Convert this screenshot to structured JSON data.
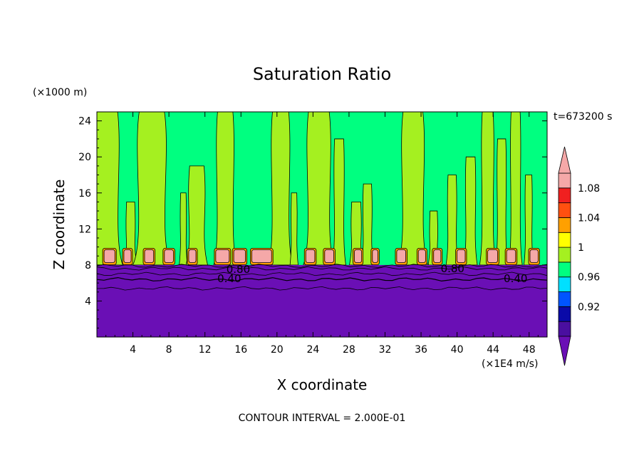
{
  "chart_data": {
    "type": "heatmap",
    "title": "Saturation Ratio",
    "xlabel": "X coordinate",
    "ylabel": "Z coordinate",
    "x_unit": "(×1E4 m/s)",
    "y_unit": "(×1000 m)",
    "time_label": "t=673200 s",
    "footer": "CONTOUR INTERVAL = 2.000E-01",
    "xlim": [
      0,
      50
    ],
    "ylim": [
      0,
      25
    ],
    "x_ticks": [
      4,
      8,
      12,
      16,
      20,
      24,
      28,
      32,
      36,
      40,
      44,
      48
    ],
    "y_ticks": [
      4,
      8,
      12,
      16,
      20,
      24
    ],
    "x_tick_labels": [
      "4",
      "8",
      "12",
      "16",
      "20",
      "24",
      "28",
      "32",
      "36",
      "40",
      "44",
      "48"
    ],
    "y_tick_labels": [
      "4",
      "8",
      "12",
      "16",
      "20",
      "24"
    ],
    "colorbar": {
      "levels": [
        0.92,
        0.96,
        1,
        1.04,
        1.08
      ],
      "labels": [
        "0.92",
        "0.96",
        "1",
        "1.04",
        "1.08"
      ],
      "colors": [
        "#4a0fa0",
        "#0a0aa8",
        "#0055ff",
        "#00e0ff",
        "#00ff80",
        "#a5f020",
        "#ffff00",
        "#ffa000",
        "#ff5010",
        "#f02020",
        "#f5a8a8"
      ],
      "under_color": "#6a0fb5",
      "over_color": "#f5a8a8"
    },
    "regions": {
      "lower_layer_top": 8,
      "lower_color": "#6a0fb5",
      "upper_base": "#00ff80",
      "plume_color": "#a5f020",
      "cap_color": "#f5a8a8",
      "cap_edge_color": "#ffa000"
    },
    "contour_labels": [
      {
        "text": "0.80",
        "x": 15.7,
        "y": 7.5
      },
      {
        "text": "0.40",
        "x": 14.7,
        "y": 6.5
      },
      {
        "text": "0.80",
        "x": 39.5,
        "y": 7.6
      },
      {
        "text": "0.40",
        "x": 46.5,
        "y": 6.5
      }
    ],
    "plumes": [
      {
        "x": 0,
        "w": 2.3,
        "top": 25
      },
      {
        "x": 3.3,
        "w": 0.9,
        "top": 15
      },
      {
        "x": 4.7,
        "w": 2.8,
        "top": 25
      },
      {
        "x": 9.3,
        "w": 0.6,
        "top": 16
      },
      {
        "x": 10.3,
        "w": 1.6,
        "top": 19
      },
      {
        "x": 13.4,
        "w": 1.7,
        "top": 25
      },
      {
        "x": 19.5,
        "w": 1.8,
        "top": 25
      },
      {
        "x": 21.6,
        "w": 0.6,
        "top": 16
      },
      {
        "x": 23.5,
        "w": 2.3,
        "top": 25
      },
      {
        "x": 26.4,
        "w": 1.0,
        "top": 22
      },
      {
        "x": 28.3,
        "w": 1.0,
        "top": 15
      },
      {
        "x": 29.6,
        "w": 0.9,
        "top": 17
      },
      {
        "x": 34.0,
        "w": 2.2,
        "top": 25
      },
      {
        "x": 37.0,
        "w": 0.8,
        "top": 14
      },
      {
        "x": 39.0,
        "w": 0.9,
        "top": 18
      },
      {
        "x": 41.0,
        "w": 1.0,
        "top": 20
      },
      {
        "x": 42.8,
        "w": 1.2,
        "top": 25
      },
      {
        "x": 44.5,
        "w": 0.9,
        "top": 22
      },
      {
        "x": 46.0,
        "w": 1.0,
        "top": 25
      },
      {
        "x": 47.6,
        "w": 0.7,
        "top": 18
      }
    ],
    "caps": [
      {
        "x": 0.8,
        "w": 1.2
      },
      {
        "x": 3.0,
        "w": 0.8
      },
      {
        "x": 5.3,
        "w": 1.0
      },
      {
        "x": 7.5,
        "w": 1.0
      },
      {
        "x": 10.2,
        "w": 0.8
      },
      {
        "x": 13.2,
        "w": 1.5
      },
      {
        "x": 15.2,
        "w": 1.3
      },
      {
        "x": 17.2,
        "w": 2.2
      },
      {
        "x": 23.2,
        "w": 1.0
      },
      {
        "x": 25.3,
        "w": 1.0
      },
      {
        "x": 28.6,
        "w": 0.8
      },
      {
        "x": 30.6,
        "w": 0.6
      },
      {
        "x": 33.3,
        "w": 1.0
      },
      {
        "x": 35.7,
        "w": 0.8
      },
      {
        "x": 37.4,
        "w": 0.8
      },
      {
        "x": 40.0,
        "w": 0.9
      },
      {
        "x": 43.4,
        "w": 1.1
      },
      {
        "x": 45.5,
        "w": 1.0
      },
      {
        "x": 48.1,
        "w": 0.9
      }
    ]
  }
}
